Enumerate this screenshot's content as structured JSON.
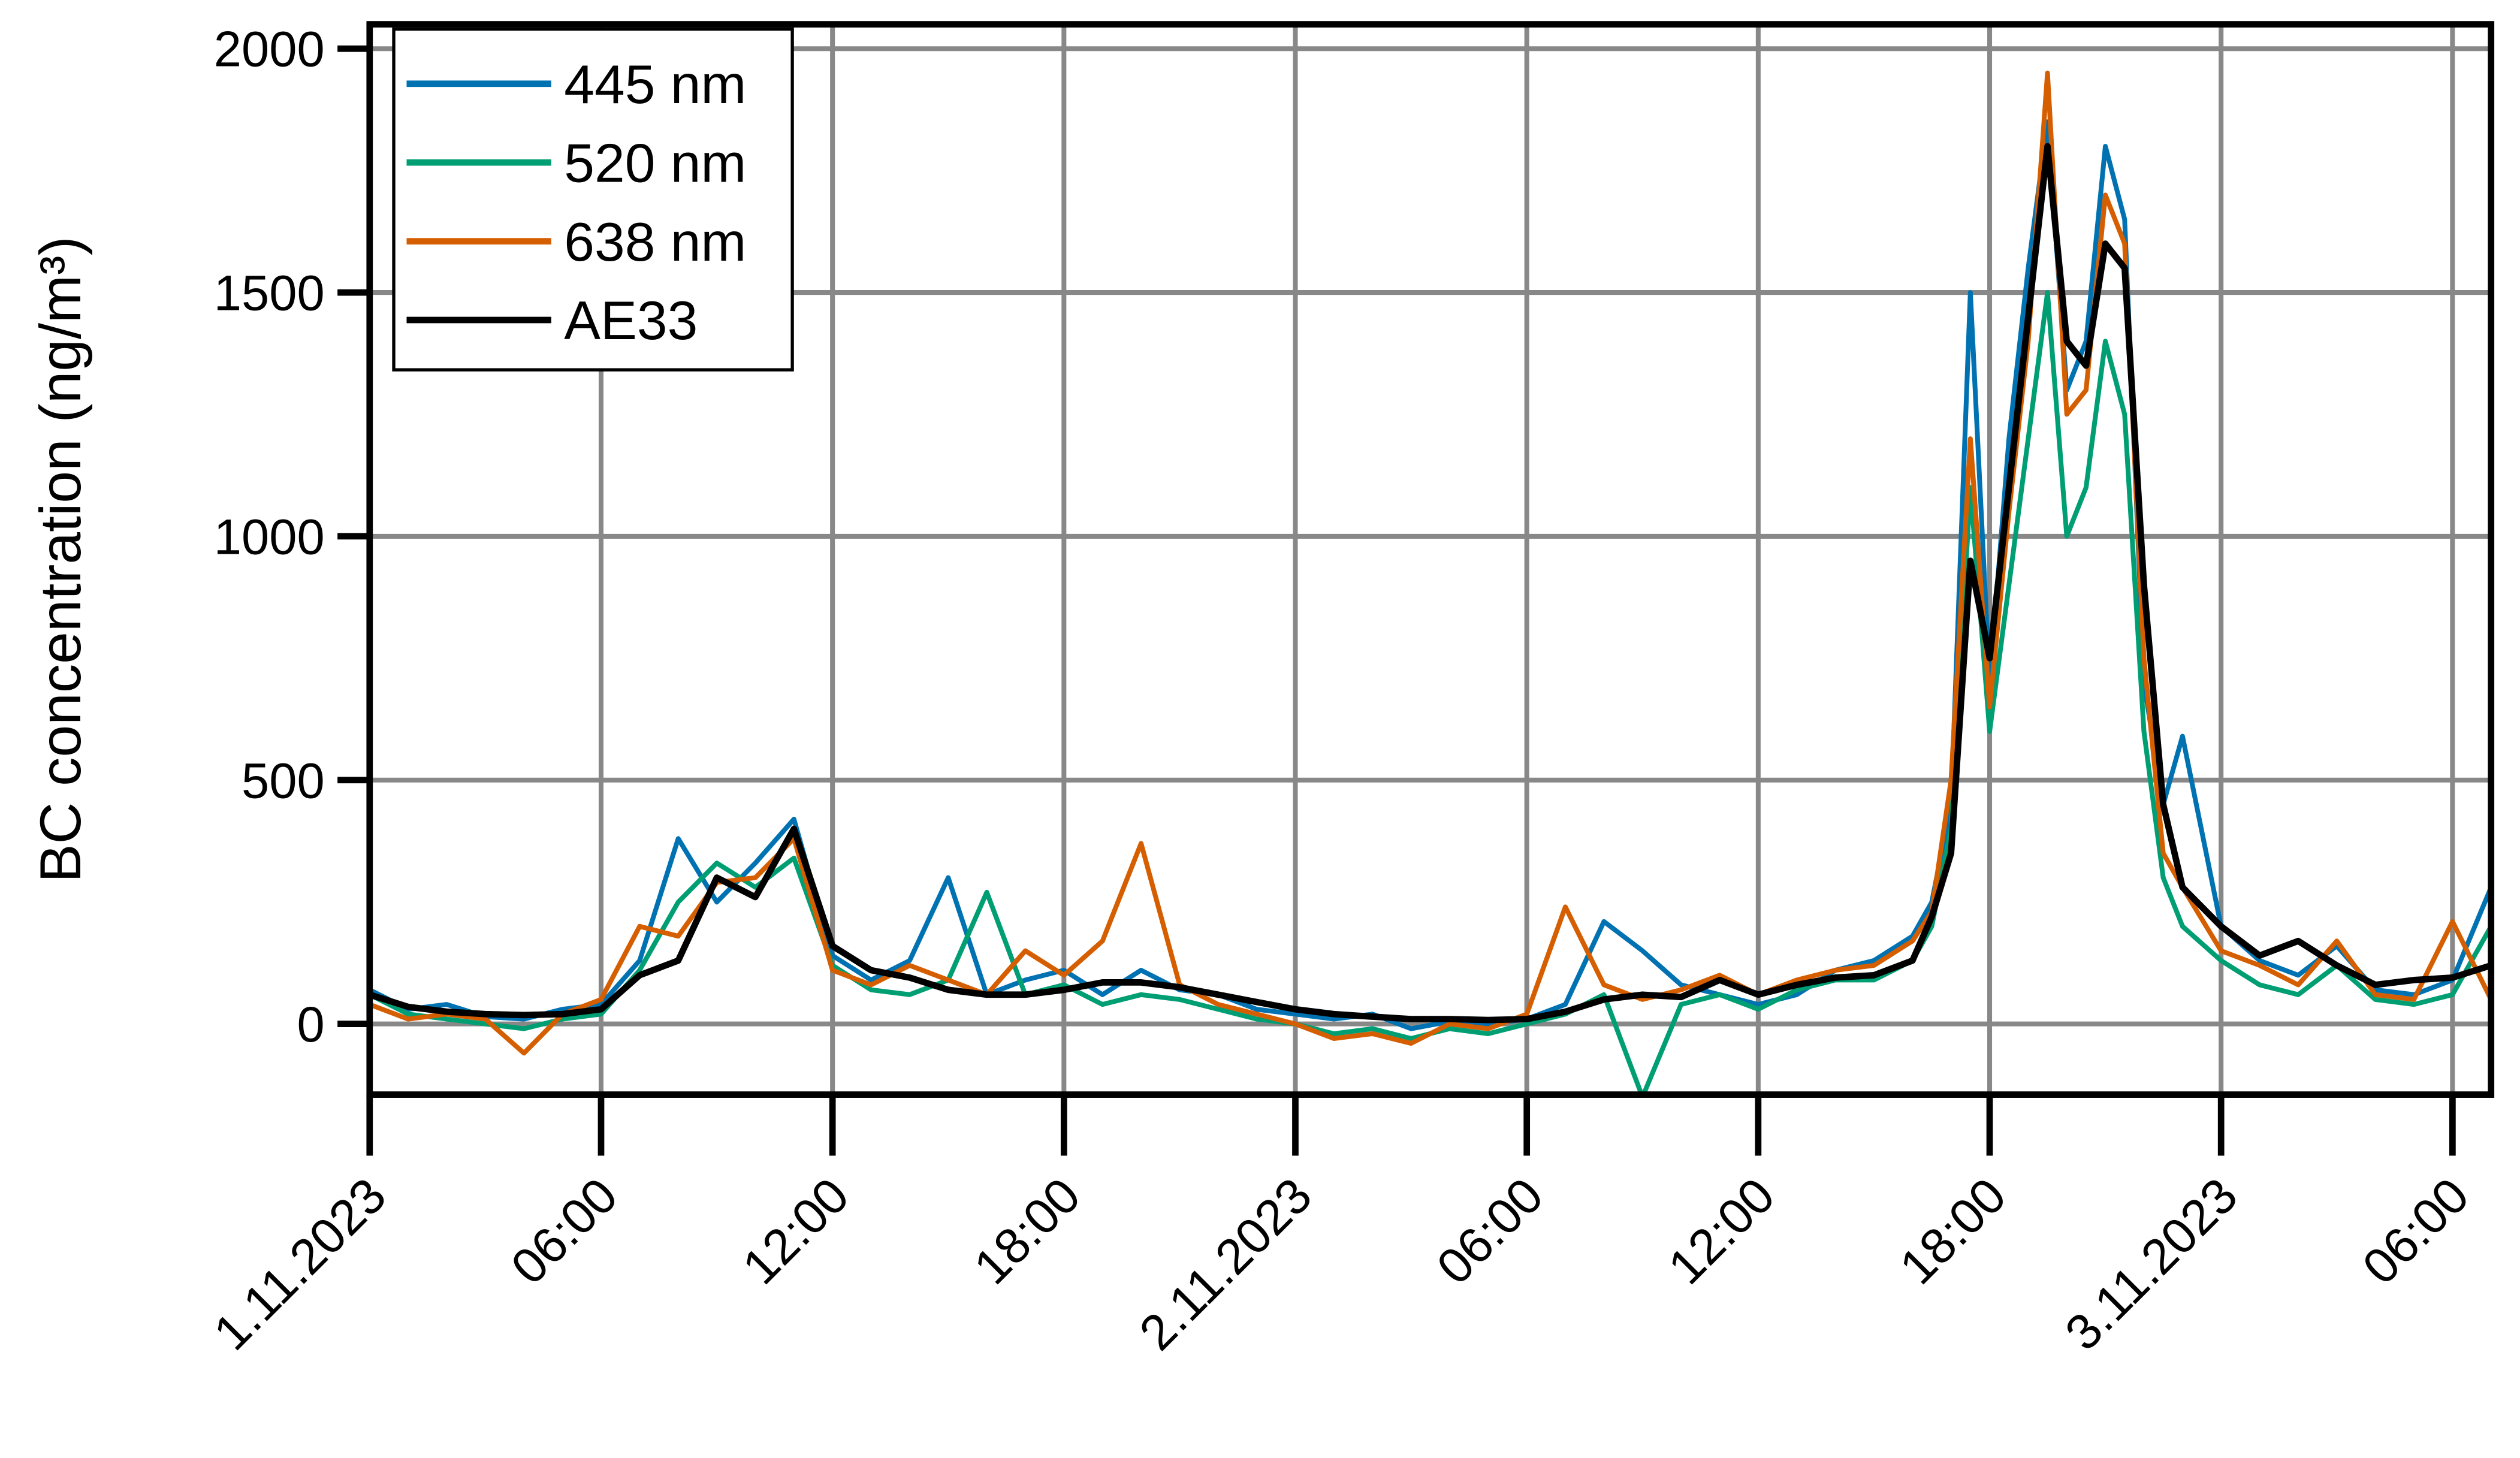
{
  "chart_data": {
    "type": "line",
    "ylabel": "BC concentration (ng/m³)",
    "x": [
      0,
      1,
      2,
      3,
      4,
      5,
      6,
      7,
      8,
      9,
      10,
      11,
      12,
      13,
      14,
      15,
      16,
      17,
      18,
      19,
      20,
      21,
      22,
      23,
      24,
      25,
      26,
      27,
      28,
      29,
      30,
      31,
      32,
      33,
      34,
      35,
      36,
      37,
      38,
      39,
      40,
      40.5,
      41,
      41.5,
      42,
      42.5,
      43,
      43.5,
      44,
      44.5,
      45,
      45.5,
      46,
      46.5,
      47,
      48,
      49,
      50,
      51,
      52,
      53,
      54,
      55
    ],
    "series": [
      {
        "name": "445 nm",
        "color": "#0072b2",
        "values": [
          70,
          30,
          40,
          15,
          10,
          30,
          40,
          130,
          380,
          250,
          330,
          420,
          140,
          90,
          130,
          300,
          60,
          90,
          110,
          60,
          110,
          70,
          60,
          30,
          20,
          10,
          20,
          -10,
          5,
          0,
          10,
          40,
          210,
          150,
          80,
          60,
          40,
          60,
          110,
          130,
          180,
          250,
          450,
          1500,
          700,
          1200,
          1550,
          1850,
          1300,
          1400,
          1800,
          1650,
          700,
          450,
          590,
          200,
          130,
          100,
          160,
          70,
          60,
          90,
          280
        ]
      },
      {
        "name": "520 nm",
        "color": "#009e73",
        "values": [
          60,
          20,
          10,
          0,
          -10,
          10,
          20,
          110,
          250,
          330,
          280,
          340,
          120,
          70,
          60,
          90,
          270,
          60,
          80,
          40,
          60,
          50,
          30,
          10,
          0,
          -20,
          -10,
          -30,
          -10,
          -20,
          0,
          20,
          60,
          -150,
          40,
          60,
          30,
          70,
          90,
          90,
          130,
          200,
          400,
          1100,
          600,
          900,
          1200,
          1500,
          1000,
          1100,
          1400,
          1250,
          600,
          300,
          200,
          130,
          80,
          60,
          120,
          50,
          40,
          60,
          200
        ]
      },
      {
        "name": "638 nm",
        "color": "#d55e00",
        "values": [
          40,
          10,
          20,
          10,
          -60,
          20,
          50,
          200,
          180,
          290,
          300,
          380,
          110,
          80,
          120,
          90,
          60,
          150,
          100,
          170,
          370,
          80,
          40,
          20,
          0,
          -30,
          -20,
          -40,
          0,
          -10,
          20,
          240,
          80,
          50,
          70,
          100,
          60,
          90,
          110,
          120,
          170,
          230,
          500,
          1200,
          650,
          1050,
          1400,
          1950,
          1250,
          1300,
          1700,
          1600,
          750,
          350,
          280,
          150,
          120,
          80,
          170,
          60,
          50,
          210,
          50
        ]
      },
      {
        "name": "AE33",
        "color": "#000000",
        "values": [
          60,
          35,
          25,
          20,
          18,
          20,
          30,
          100,
          130,
          300,
          260,
          400,
          160,
          110,
          95,
          70,
          60,
          60,
          70,
          85,
          85,
          75,
          60,
          45,
          30,
          20,
          15,
          10,
          10,
          8,
          10,
          25,
          50,
          60,
          55,
          90,
          60,
          80,
          95,
          100,
          130,
          220,
          350,
          950,
          750,
          1100,
          1450,
          1800,
          1400,
          1350,
          1600,
          1550,
          900,
          450,
          280,
          200,
          140,
          170,
          120,
          80,
          90,
          95,
          120
        ]
      }
    ],
    "xlim": [
      0,
      55
    ],
    "xticks": [
      {
        "value": 0,
        "label": "1.11.2023"
      },
      {
        "value": 6,
        "label": "06:00"
      },
      {
        "value": 12,
        "label": "12:00"
      },
      {
        "value": 18,
        "label": "18:00"
      },
      {
        "value": 24,
        "label": "2.11.2023"
      },
      {
        "value": 30,
        "label": "06:00"
      },
      {
        "value": 36,
        "label": "12:00"
      },
      {
        "value": 42,
        "label": "18:00"
      },
      {
        "value": 48,
        "label": "3.11.2023"
      },
      {
        "value": 54,
        "label": "06:00"
      }
    ],
    "ylim": [
      -145,
      2050
    ],
    "yticks": [
      0,
      500,
      1000,
      1500,
      2000
    ],
    "grid": true,
    "legend": "top-left"
  }
}
